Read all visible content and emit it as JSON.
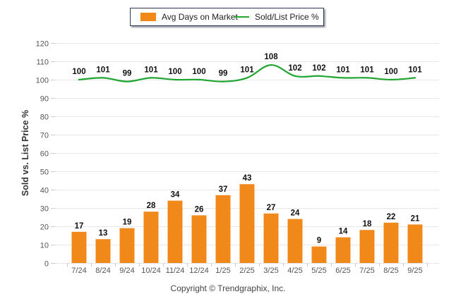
{
  "chart_data": {
    "type": "bar+line",
    "categories": [
      "7/24",
      "8/24",
      "9/24",
      "10/24",
      "11/24",
      "12/24",
      "1/25",
      "2/25",
      "3/25",
      "4/25",
      "5/25",
      "6/25",
      "7/25",
      "8/25",
      "9/25"
    ],
    "series": [
      {
        "name": "Avg Days on Market",
        "type": "bar",
        "color": "#f0891a",
        "values": [
          17,
          13,
          19,
          28,
          34,
          26,
          37,
          43,
          27,
          24,
          9,
          14,
          18,
          22,
          21
        ]
      },
      {
        "name": "Sold/List Price %",
        "type": "line",
        "color": "#22a632",
        "values": [
          100,
          101,
          99,
          101,
          100,
          100,
          99,
          101,
          108,
          102,
          102,
          101,
          101,
          100,
          101
        ]
      }
    ],
    "ylabel": "Sold vs. List Price %",
    "ylim": [
      0,
      120
    ],
    "yticks": [
      0,
      10,
      20,
      30,
      40,
      50,
      60,
      70,
      80,
      90,
      100,
      110,
      120
    ],
    "grid": true,
    "legend_position": "top-center"
  },
  "legend": {
    "bar_label": "Avg Days on Market",
    "line_label": "Sold/List Price %"
  },
  "footer": {
    "copyright": "Copyright © Trendgraphix, Inc."
  }
}
